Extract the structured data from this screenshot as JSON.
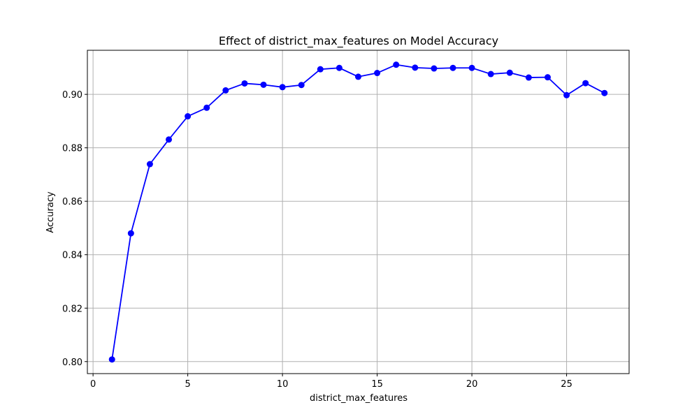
{
  "chart_data": {
    "type": "line",
    "title": "Effect of district_max_features on Model Accuracy",
    "xlabel": "district_max_features",
    "ylabel": "Accuracy",
    "xlim": [
      -0.3,
      28.3
    ],
    "ylim": [
      0.7955,
      0.9165
    ],
    "x_ticks": [
      0,
      5,
      10,
      15,
      20,
      25
    ],
    "y_ticks": [
      0.8,
      0.82,
      0.84,
      0.86,
      0.88,
      0.9
    ],
    "y_tick_labels": [
      "0.80",
      "0.82",
      "0.84",
      "0.86",
      "0.88",
      "0.90"
    ],
    "grid": true,
    "series": [
      {
        "color": "#0000ff",
        "marker": "circle",
        "x": [
          1,
          2,
          3,
          4,
          5,
          6,
          7,
          8,
          9,
          10,
          11,
          12,
          13,
          14,
          15,
          16,
          17,
          18,
          19,
          20,
          21,
          22,
          23,
          24,
          25,
          26,
          27
        ],
        "values": [
          0.8008,
          0.848,
          0.8739,
          0.8831,
          0.8918,
          0.895,
          0.9015,
          0.9041,
          0.9036,
          0.9027,
          0.9035,
          0.9094,
          0.9099,
          0.9066,
          0.908,
          0.9111,
          0.91,
          0.9097,
          0.9099,
          0.9099,
          0.9076,
          0.9081,
          0.9063,
          0.9064,
          0.8997,
          0.9042,
          0.9005
        ]
      }
    ]
  }
}
